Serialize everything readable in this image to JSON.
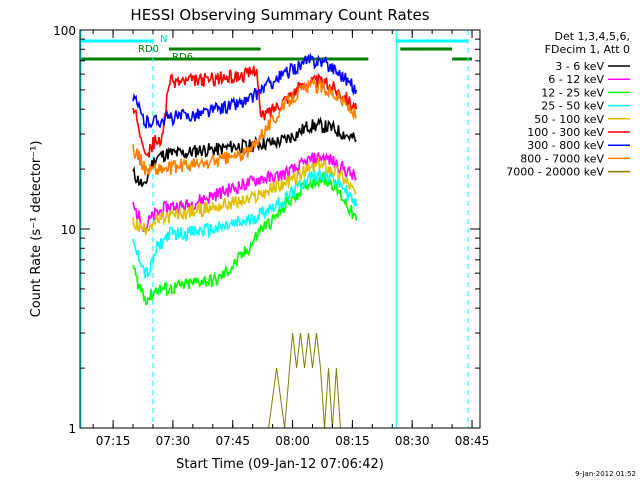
{
  "chart_data": {
    "type": "line",
    "title": "HESSI Observing Summary Count Rates",
    "xlabel": "Start Time (09-Jan-12 07:06:42)",
    "ylabel": "Count Rate (s⁻¹ detector⁻¹)",
    "yscale": "log",
    "ylim": [
      1,
      100
    ],
    "xlim": [
      "07:06:42",
      "08:47:00"
    ],
    "x_ticks": [
      "07:15",
      "07:30",
      "07:45",
      "08:00",
      "08:15",
      "08:30",
      "08:45"
    ],
    "y_ticks": [
      "1",
      "10",
      "100"
    ],
    "grid": false,
    "legend_position": "right",
    "legend_header": [
      "Det 1,3,4,5,6,",
      "FDecim 1, Att 0"
    ],
    "timestamp": "9-Jan-2012 01:52",
    "annotations": {
      "night": "N",
      "rd0": "RD0",
      "rd6": "RD6"
    },
    "bars": {
      "night": {
        "color": "#00ffff",
        "segments": [
          [
            "07:06:42",
            "07:25:00"
          ],
          [
            "08:26:00",
            "08:44:00"
          ]
        ]
      },
      "rd0": {
        "color": "#008000",
        "segments": [
          [
            "07:29:00",
            "07:52:00"
          ],
          [
            "08:27:00",
            "08:40:00"
          ]
        ]
      },
      "rd6": {
        "color": "#008000",
        "segments": [
          [
            "07:06:42",
            "08:19:00"
          ],
          [
            "08:40:00",
            "08:45:00"
          ]
        ]
      }
    },
    "markers": {
      "saa_dashed": [
        "07:25:00",
        "08:44:00"
      ],
      "solid": [
        "08:26:00"
      ]
    },
    "series": [
      {
        "name": "3 - 6 keV",
        "color": "#000000",
        "x": [
          "07:20",
          "07:21",
          "07:22",
          "07:23",
          "07:24",
          "07:26",
          "07:29",
          "07:33",
          "07:37",
          "07:41",
          "07:45",
          "07:49",
          "07:52",
          "07:55",
          "07:58",
          "08:01",
          "08:04",
          "08:07",
          "08:10",
          "08:13",
          "08:16"
        ],
        "y": [
          19,
          18,
          17,
          16,
          20,
          23,
          24,
          24,
          25,
          25,
          26,
          26,
          27,
          27,
          28,
          30,
          33,
          33,
          32,
          30,
          28
        ]
      },
      {
        "name": "6 - 12 keV",
        "color": "#ff00ff",
        "x": [
          "07:20",
          "07:21",
          "07:22",
          "07:23",
          "07:24",
          "07:26",
          "07:29",
          "07:33",
          "07:37",
          "07:41",
          "07:45",
          "07:49",
          "07:52",
          "07:55",
          "07:58",
          "08:01",
          "08:04",
          "08:07",
          "08:10",
          "08:13",
          "08:16"
        ],
        "y": [
          13,
          12,
          11,
          10,
          11,
          12,
          13,
          13,
          14,
          15,
          16,
          17,
          18,
          18,
          19,
          20,
          22,
          23,
          22,
          20,
          18
        ]
      },
      {
        "name": "12 - 25 keV",
        "color": "#00ff00",
        "x": [
          "07:20",
          "07:21",
          "07:22",
          "07:23",
          "07:24",
          "07:26",
          "07:29",
          "07:33",
          "07:37",
          "07:41",
          "07:45",
          "07:49",
          "07:52",
          "07:55",
          "07:58",
          "08:01",
          "08:04",
          "08:07",
          "08:10",
          "08:13",
          "08:16"
        ],
        "y": [
          6.5,
          5.5,
          5,
          4.5,
          4.5,
          5,
          5,
          5.2,
          5.5,
          5.5,
          6.5,
          8,
          10,
          11,
          13,
          15,
          17,
          18,
          17,
          14,
          11
        ]
      },
      {
        "name": "25 - 50 keV",
        "color": "#00ffff",
        "x": [
          "07:20",
          "07:21",
          "07:22",
          "07:23",
          "07:24",
          "07:26",
          "07:29",
          "07:33",
          "07:37",
          "07:41",
          "07:45",
          "07:49",
          "07:52",
          "07:55",
          "07:58",
          "08:01",
          "08:04",
          "08:07",
          "08:10",
          "08:13",
          "08:16"
        ],
        "y": [
          8.5,
          7.5,
          7,
          6,
          6,
          8,
          9.5,
          9.5,
          9.8,
          10,
          10.5,
          11,
          12,
          13,
          14,
          16,
          18,
          19,
          18,
          16,
          13
        ]
      },
      {
        "name": "50 - 100 keV",
        "color": "#e0c000",
        "x": [
          "07:20",
          "07:21",
          "07:22",
          "07:23",
          "07:24",
          "07:26",
          "07:29",
          "07:33",
          "07:37",
          "07:41",
          "07:45",
          "07:49",
          "07:52",
          "07:55",
          "07:58",
          "08:01",
          "08:04",
          "08:07",
          "08:10",
          "08:13",
          "08:16"
        ],
        "y": [
          11,
          10.5,
          10,
          10,
          10.5,
          11,
          11.5,
          12,
          12.5,
          13,
          13.5,
          14,
          15,
          16,
          17,
          18,
          20,
          21,
          20,
          18,
          15
        ]
      },
      {
        "name": "100 - 300 keV",
        "color": "#ff0000",
        "x": [
          "07:20",
          "07:21",
          "07:22",
          "07:23",
          "07:24",
          "07:25",
          "07:26",
          "07:27",
          "07:29",
          "07:33",
          "07:37",
          "07:41",
          "07:45",
          "07:49",
          "07:51",
          "07:52",
          "07:55",
          "07:58",
          "08:01",
          "08:04",
          "08:07",
          "08:10",
          "08:13",
          "08:16"
        ],
        "y": [
          38,
          36,
          30,
          26,
          24,
          27,
          28,
          26,
          55,
          55,
          56,
          57,
          58,
          60,
          65,
          36,
          40,
          45,
          50,
          55,
          55,
          52,
          47,
          40
        ]
      },
      {
        "name": "300 - 800 keV",
        "color": "#0000ff",
        "x": [
          "07:20",
          "07:21",
          "07:22",
          "07:23",
          "07:24",
          "07:26",
          "07:29",
          "07:33",
          "07:37",
          "07:41",
          "07:45",
          "07:49",
          "07:52",
          "07:55",
          "07:58",
          "08:01",
          "08:04",
          "08:07",
          "08:10",
          "08:13",
          "08:16"
        ],
        "y": [
          45,
          42,
          38,
          34,
          35,
          35,
          36,
          37,
          38,
          40,
          42,
          44,
          50,
          55,
          60,
          65,
          70,
          70,
          65,
          58,
          50
        ]
      },
      {
        "name": "800 - 7000 keV",
        "color": "#ff8000",
        "x": [
          "07:20",
          "07:21",
          "07:22",
          "07:23",
          "07:24",
          "07:26",
          "07:29",
          "07:33",
          "07:37",
          "07:41",
          "07:45",
          "07:49",
          "07:52",
          "07:55",
          "07:58",
          "08:01",
          "08:04",
          "08:07",
          "08:10",
          "08:13",
          "08:16"
        ],
        "y": [
          25,
          24,
          22,
          20,
          20,
          20,
          20,
          21,
          21,
          22,
          23,
          24,
          30,
          35,
          42,
          48,
          52,
          52,
          49,
          43,
          37
        ]
      },
      {
        "name": "7000 - 20000 keV",
        "color": "#808000",
        "x": [
          "07:52",
          "07:54",
          "07:56",
          "07:58",
          "08:00",
          "08:01",
          "08:02",
          "08:03",
          "08:04",
          "08:05",
          "08:06",
          "08:07",
          "08:08",
          "08:09",
          "08:10",
          "08:11",
          "08:12"
        ],
        "y": [
          1,
          1,
          2,
          1,
          3,
          2,
          3,
          2,
          3,
          2,
          3,
          2,
          1,
          2,
          1,
          2,
          1
        ]
      }
    ]
  }
}
